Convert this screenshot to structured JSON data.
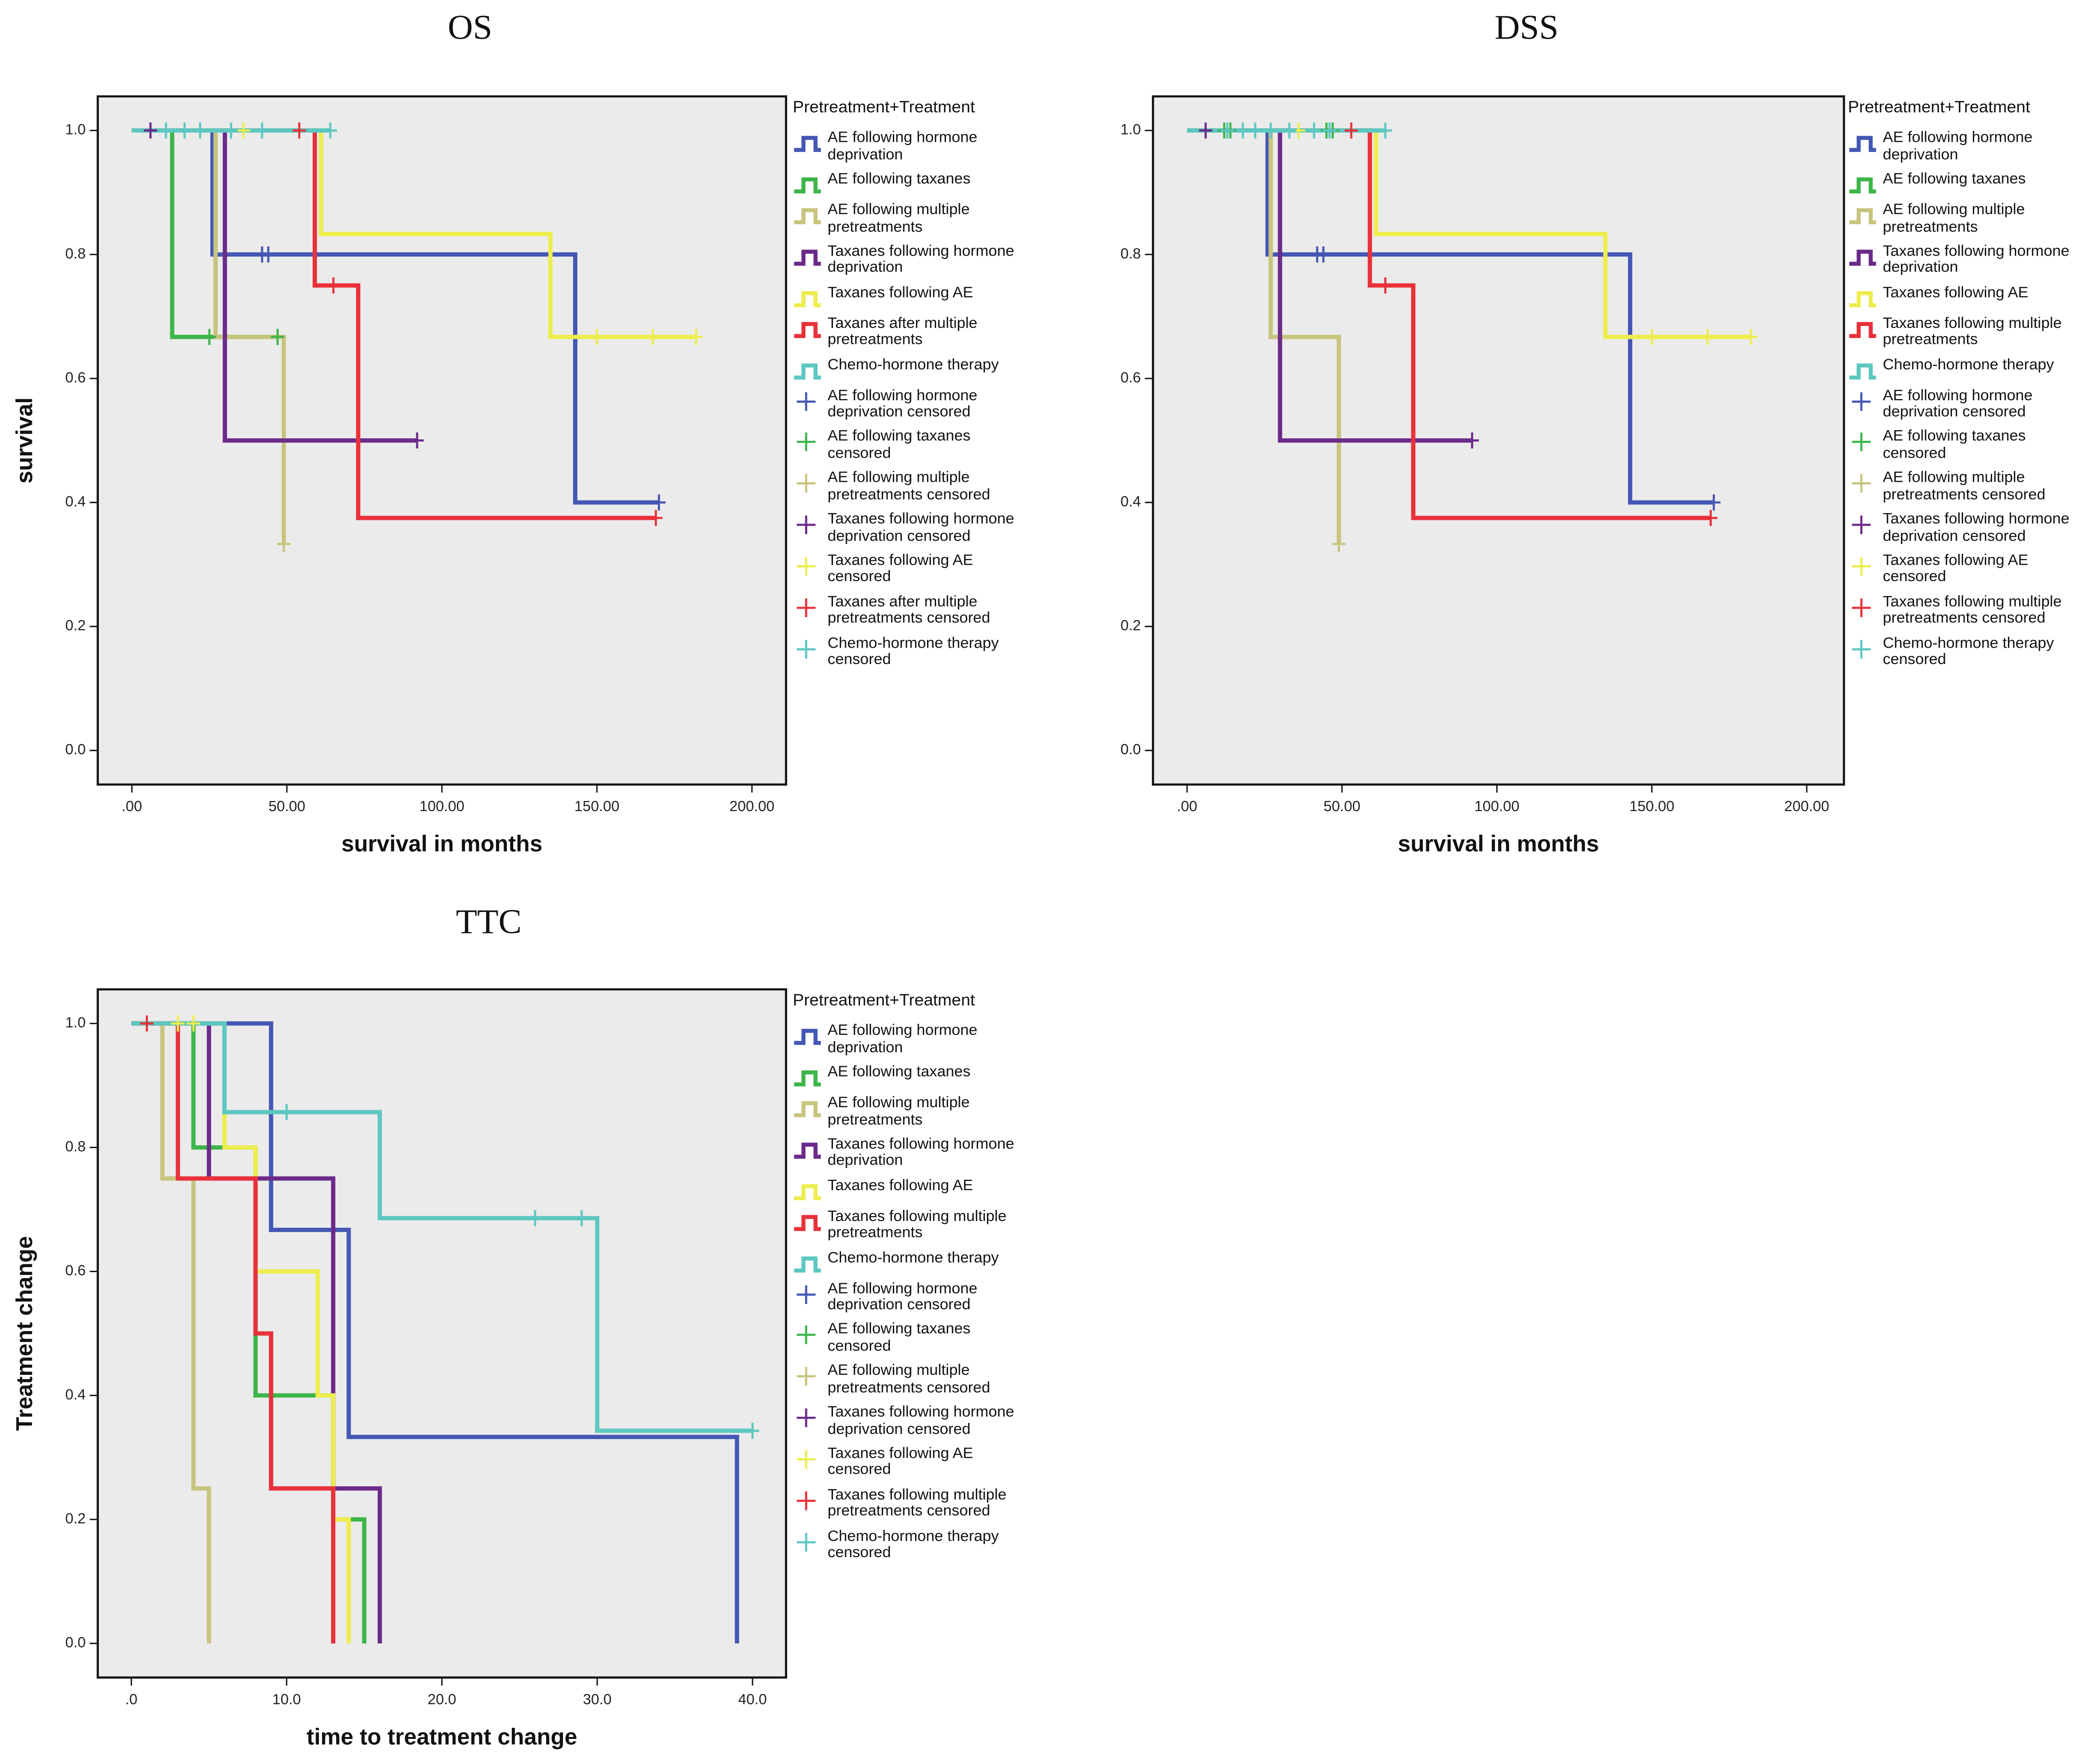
{
  "chart_data": [
    {
      "type": "step",
      "title": "OS",
      "x_label": "survival in months",
      "y_label": "survival",
      "legend_title": "Pretreatment+Treatment",
      "xlim": [
        -11,
        211
      ],
      "xticks": [
        {
          "value": 0,
          "label": ".00"
        },
        {
          "value": 50,
          "label": "50.00"
        },
        {
          "value": 100,
          "label": "100.00"
        },
        {
          "value": 150,
          "label": "150.00"
        },
        {
          "value": 200,
          "label": "200.00"
        }
      ],
      "ylim": [
        -0.055,
        1.055
      ],
      "yticks": [
        {
          "value": 0,
          "label": "0.0"
        },
        {
          "value": 0.2,
          "label": "0.2"
        },
        {
          "value": 0.4,
          "label": "0.4"
        },
        {
          "value": 0.6,
          "label": "0.6"
        },
        {
          "value": 0.8,
          "label": "0.8"
        },
        {
          "value": 1,
          "label": "1.0"
        }
      ],
      "series": [
        {
          "name": "AE following hormone deprivation",
          "color": "#4557b5",
          "mark": "line",
          "x": [
            0,
            26,
            143,
            170
          ],
          "values": [
            1,
            0.8,
            0.4,
            0.4
          ]
        },
        {
          "name": "AE following taxanes",
          "color": "#3db54a",
          "mark": "line",
          "x": [
            0,
            13,
            47
          ],
          "values": [
            1,
            0.667,
            0.667
          ]
        },
        {
          "name": "AE following multiple pretreatments",
          "color": "#c8c47e",
          "mark": "line",
          "x": [
            0,
            27,
            49
          ],
          "values": [
            1,
            0.667,
            0.333
          ]
        },
        {
          "name": "Taxanes following hormone deprivation",
          "color": "#6c2a8a",
          "mark": "line",
          "x": [
            0,
            30,
            92
          ],
          "values": [
            1,
            0.5,
            0.5
          ]
        },
        {
          "name": "Taxanes following AE",
          "color": "#eded4d",
          "mark": "line",
          "x": [
            0,
            61,
            135,
            182
          ],
          "values": [
            1,
            0.833,
            0.667,
            0.667
          ]
        },
        {
          "name": "Taxanes after multiple pretreatments",
          "color": "#e8313a",
          "mark": "line",
          "x": [
            0,
            59,
            73,
            169
          ],
          "values": [
            1,
            0.75,
            0.375,
            0.375
          ]
        },
        {
          "name": "Chemo-hormone therapy",
          "color": "#5dc7c1",
          "mark": "line",
          "x": [
            0,
            64
          ],
          "values": [
            1,
            1
          ]
        },
        {
          "name": "AE following hormone deprivation censored",
          "color": "#4557b5",
          "mark": "plus",
          "x": [
            42,
            44,
            170
          ],
          "values": [
            0.8,
            0.8,
            0.4
          ]
        },
        {
          "name": "AE following taxanes censored",
          "color": "#3db54a",
          "mark": "plus",
          "x": [
            25,
            47
          ],
          "values": [
            0.667,
            0.667
          ]
        },
        {
          "name": "AE following multiple pretreatments censored",
          "color": "#c8c47e",
          "mark": "plus",
          "x": [
            49
          ],
          "values": [
            0.333
          ]
        },
        {
          "name": "Taxanes following hormone deprivation censored",
          "color": "#6c2a8a",
          "mark": "plus",
          "x": [
            6,
            92
          ],
          "values": [
            1,
            0.5
          ]
        },
        {
          "name": "Taxanes following AE censored",
          "color": "#eded4d",
          "mark": "plus",
          "x": [
            36,
            150,
            168,
            182
          ],
          "values": [
            1,
            0.667,
            0.667,
            0.667
          ]
        },
        {
          "name": "Taxanes after multiple pretreatments censored",
          "color": "#e8313a",
          "mark": "plus",
          "x": [
            54,
            65,
            169
          ],
          "values": [
            1,
            0.75,
            0.375
          ]
        },
        {
          "name": "Chemo-hormone therapy censored",
          "color": "#5dc7c1",
          "mark": "plus",
          "x": [
            11,
            17,
            22,
            32,
            42,
            64
          ],
          "values": [
            1,
            1,
            1,
            1,
            1,
            1
          ]
        }
      ]
    },
    {
      "type": "step",
      "title": "DSS",
      "x_label": "survival in months",
      "y_label": "survival",
      "legend_title": "Pretreatment+Treatment",
      "xlim": [
        -11,
        212
      ],
      "xticks": [
        {
          "value": 0,
          "label": ".00"
        },
        {
          "value": 50,
          "label": "50.00"
        },
        {
          "value": 100,
          "label": "100.00"
        },
        {
          "value": 150,
          "label": "150.00"
        },
        {
          "value": 200,
          "label": "200.00"
        }
      ],
      "ylim": [
        -0.055,
        1.055
      ],
      "yticks": [
        {
          "value": 0,
          "label": "0.0"
        },
        {
          "value": 0.2,
          "label": "0.2"
        },
        {
          "value": 0.4,
          "label": "0.4"
        },
        {
          "value": 0.6,
          "label": "0.6"
        },
        {
          "value": 0.8,
          "label": "0.8"
        },
        {
          "value": 1,
          "label": "1.0"
        }
      ],
      "series": [
        {
          "name": "AE following hormone deprivation",
          "color": "#4557b5",
          "mark": "line",
          "x": [
            0,
            26,
            143,
            170
          ],
          "values": [
            1,
            0.8,
            0.4,
            0.4
          ]
        },
        {
          "name": "AE following taxanes",
          "color": "#3db54a",
          "mark": "line",
          "x": [
            0,
            47
          ],
          "values": [
            1,
            1
          ]
        },
        {
          "name": "AE following multiple pretreatments",
          "color": "#c8c47e",
          "mark": "line",
          "x": [
            0,
            27,
            49
          ],
          "values": [
            1,
            0.667,
            0.333
          ]
        },
        {
          "name": "Taxanes following hormone deprivation",
          "color": "#6c2a8a",
          "mark": "line",
          "x": [
            0,
            30,
            92
          ],
          "values": [
            1,
            0.5,
            0.5
          ]
        },
        {
          "name": "Taxanes following AE",
          "color": "#eded4d",
          "mark": "line",
          "x": [
            0,
            61,
            135,
            182
          ],
          "values": [
            1,
            0.833,
            0.667,
            0.667
          ]
        },
        {
          "name": "Taxanes following multiple pretreatments",
          "color": "#e8313a",
          "mark": "line",
          "x": [
            0,
            59,
            73,
            169
          ],
          "values": [
            1,
            0.75,
            0.375,
            0.375
          ]
        },
        {
          "name": "Chemo-hormone therapy",
          "color": "#5dc7c1",
          "mark": "line",
          "x": [
            0,
            64
          ],
          "values": [
            1,
            1
          ]
        },
        {
          "name": "AE following hormone deprivation censored",
          "color": "#4557b5",
          "mark": "plus",
          "x": [
            42,
            44,
            170
          ],
          "values": [
            0.8,
            0.8,
            0.4
          ]
        },
        {
          "name": "AE following taxanes censored",
          "color": "#3db54a",
          "mark": "plus",
          "x": [
            12,
            14,
            45,
            47
          ],
          "values": [
            1,
            1,
            1,
            1
          ]
        },
        {
          "name": "AE following multiple pretreatments censored",
          "color": "#c8c47e",
          "mark": "plus",
          "x": [
            49
          ],
          "values": [
            0.333
          ]
        },
        {
          "name": "Taxanes following hormone deprivation censored",
          "color": "#6c2a8a",
          "mark": "plus",
          "x": [
            6,
            92
          ],
          "values": [
            1,
            0.5
          ]
        },
        {
          "name": "Taxanes following AE censored",
          "color": "#eded4d",
          "mark": "plus",
          "x": [
            36,
            150,
            168,
            182
          ],
          "values": [
            1,
            0.667,
            0.667,
            0.667
          ]
        },
        {
          "name": "Taxanes following multiple pretreatments censored",
          "color": "#e8313a",
          "mark": "plus",
          "x": [
            53,
            64,
            169
          ],
          "values": [
            1,
            0.75,
            0.375
          ]
        },
        {
          "name": "Chemo-hormone therapy censored",
          "color": "#5dc7c1",
          "mark": "plus",
          "x": [
            13,
            18,
            22,
            27,
            33,
            41,
            46,
            64
          ],
          "values": [
            1,
            1,
            1,
            1,
            1,
            1,
            1,
            1
          ]
        }
      ]
    },
    {
      "type": "step",
      "title": "TTC",
      "x_label": "time to treatment change",
      "y_label": "Treatment change",
      "legend_title": "Pretreatment+Treatment",
      "xlim": [
        -2.16,
        42.16
      ],
      "xticks": [
        {
          "value": 0,
          "label": ".0"
        },
        {
          "value": 10,
          "label": "10.0"
        },
        {
          "value": 20,
          "label": "20.0"
        },
        {
          "value": 30,
          "label": "30.0"
        },
        {
          "value": 40,
          "label": "40.0"
        }
      ],
      "ylim": [
        -0.055,
        1.055
      ],
      "yticks": [
        {
          "value": 0,
          "label": "0.0"
        },
        {
          "value": 0.2,
          "label": "0.2"
        },
        {
          "value": 0.4,
          "label": "0.4"
        },
        {
          "value": 0.6,
          "label": "0.6"
        },
        {
          "value": 0.8,
          "label": "0.8"
        },
        {
          "value": 1,
          "label": "1.0"
        }
      ],
      "series": [
        {
          "name": "AE following hormone deprivation",
          "color": "#4557b5",
          "mark": "line",
          "x": [
            0,
            9,
            14,
            39
          ],
          "values": [
            1,
            0.667,
            0.333,
            0
          ]
        },
        {
          "name": "AE following taxanes",
          "color": "#3db54a",
          "mark": "line",
          "x": [
            0,
            4,
            8,
            13,
            15
          ],
          "values": [
            1,
            0.8,
            0.4,
            0.2,
            0
          ]
        },
        {
          "name": "AE following multiple pretreatments",
          "color": "#c8c47e",
          "mark": "line",
          "x": [
            0,
            2,
            4,
            5
          ],
          "values": [
            1,
            0.75,
            0.25,
            0
          ]
        },
        {
          "name": "Taxanes following hormone deprivation",
          "color": "#6c2a8a",
          "mark": "line",
          "x": [
            0,
            5,
            13,
            16
          ],
          "values": [
            1,
            0.75,
            0.25,
            0
          ]
        },
        {
          "name": "Taxanes following AE",
          "color": "#eded4d",
          "mark": "line",
          "x": [
            0,
            6,
            8,
            12,
            13,
            14
          ],
          "values": [
            1,
            0.8,
            0.6,
            0.4,
            0.2,
            0
          ]
        },
        {
          "name": "Taxanes following multiple pretreatments",
          "color": "#e8313a",
          "mark": "line",
          "x": [
            0,
            3,
            8,
            9,
            13
          ],
          "values": [
            1,
            0.75,
            0.5,
            0.25,
            0
          ]
        },
        {
          "name": "Chemo-hormone therapy",
          "color": "#5dc7c1",
          "mark": "line",
          "x": [
            0,
            6,
            16,
            30,
            40
          ],
          "values": [
            1,
            0.857,
            0.686,
            0.343,
            0.343
          ]
        },
        {
          "name": "AE following hormone deprivation censored",
          "color": "#4557b5",
          "mark": "plus",
          "x": [],
          "values": []
        },
        {
          "name": "AE following taxanes censored",
          "color": "#3db54a",
          "mark": "plus",
          "x": [],
          "values": []
        },
        {
          "name": "AE following multiple pretreatments censored",
          "color": "#c8c47e",
          "mark": "plus",
          "x": [],
          "values": []
        },
        {
          "name": "Taxanes following hormone deprivation censored",
          "color": "#6c2a8a",
          "mark": "plus",
          "x": [],
          "values": []
        },
        {
          "name": "Taxanes following AE censored",
          "color": "#eded4d",
          "mark": "plus",
          "x": [
            3,
            4
          ],
          "values": [
            1,
            1
          ]
        },
        {
          "name": "Taxanes following multiple pretreatments censored",
          "color": "#e8313a",
          "mark": "plus",
          "x": [
            1
          ],
          "values": [
            1
          ]
        },
        {
          "name": "Chemo-hormone therapy censored",
          "color": "#5dc7c1",
          "mark": "plus",
          "x": [
            10,
            26,
            29,
            40
          ],
          "values": [
            0.857,
            0.686,
            0.686,
            0.343
          ]
        }
      ]
    }
  ]
}
